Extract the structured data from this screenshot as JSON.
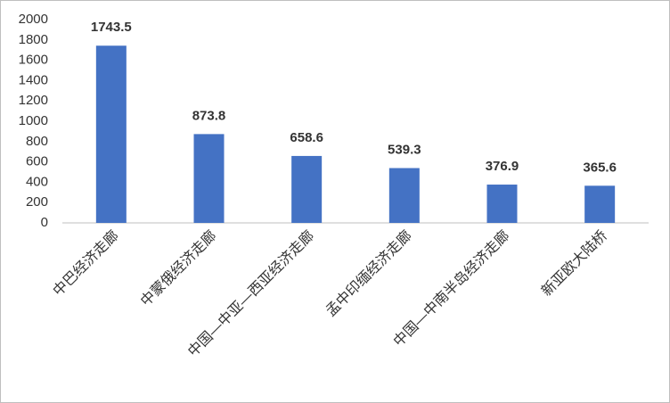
{
  "chart_data": {
    "type": "bar",
    "categories": [
      "中巴经济走廊",
      "中蒙俄经济走廊",
      "中国—中亚—西亚经济走廊",
      "孟中印缅经济走廊",
      "中国—中南半岛经济走廊",
      "新亚欧大陆桥"
    ],
    "values": [
      1743.5,
      873.8,
      658.6,
      539.3,
      376.9,
      365.6
    ],
    "color": "#4472c4",
    "ylim": [
      0,
      2000
    ],
    "yticks": [
      0,
      200,
      400,
      600,
      800,
      1000,
      1200,
      1400,
      1600,
      1800,
      2000
    ],
    "grid": false
  }
}
